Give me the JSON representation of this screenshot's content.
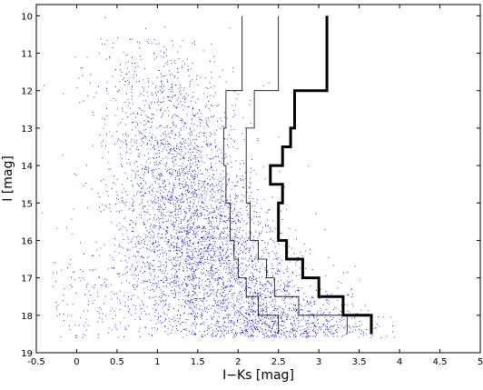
{
  "chart_data": {
    "type": "scatter",
    "xlabel": "I−Ks [mag]",
    "ylabel": "I [mag]",
    "xlim": [
      -0.5,
      5
    ],
    "ylim": [
      9.7,
      19
    ],
    "y_inverted": true,
    "grid": false,
    "x_ticks": [
      -0.5,
      0,
      0.5,
      1,
      1.5,
      2,
      2.5,
      3,
      3.5,
      4,
      4.5,
      5
    ],
    "x_tick_labels": [
      "-0.5",
      "0",
      "0.5",
      "1",
      "1.5",
      "2",
      "2.5",
      "3",
      "3.5",
      "4",
      "4.5",
      "5"
    ],
    "y_ticks": [
      10,
      11,
      12,
      13,
      14,
      15,
      16,
      17,
      18,
      19
    ],
    "y_tick_labels": [
      "10",
      "11",
      "12",
      "13",
      "14",
      "15",
      "16",
      "17",
      "18",
      "19"
    ],
    "scatter": {
      "color": "#0000ff",
      "approx_points": 9000,
      "description_of_locus": [
        {
          "I": 10.5,
          "color_center": 0.8,
          "color_spread": 0.4
        },
        {
          "I": 12,
          "color_center": 1.1,
          "color_spread": 0.45
        },
        {
          "I": 14,
          "color_center": 1.25,
          "color_spread": 0.45
        },
        {
          "I": 16,
          "color_center": 1.45,
          "color_spread": 0.5
        },
        {
          "I": 17,
          "color_center": 1.75,
          "color_spread": 0.6
        },
        {
          "I": 18,
          "color_center": 2.2,
          "color_spread": 0.65
        },
        {
          "I": 18.5,
          "color_center": 2.5,
          "color_spread": 0.6
        }
      ]
    },
    "series": [
      {
        "style": "thin",
        "color": "#000000",
        "steps": [
          {
            "I": [
              10.0,
              12.0
            ],
            "x": 2.05
          },
          {
            "I": [
              12.0,
              13.0
            ],
            "x": 1.85
          },
          {
            "I": [
              13.0,
              14.0
            ],
            "x": 1.82
          },
          {
            "I": [
              14.0,
              15.0
            ],
            "x": 1.85
          },
          {
            "I": [
              15.0,
              16.0
            ],
            "x": 1.9
          },
          {
            "I": [
              16.0,
              16.5
            ],
            "x": 1.95
          },
          {
            "I": [
              16.5,
              17.0
            ],
            "x": 2.0
          },
          {
            "I": [
              17.0,
              17.5
            ],
            "x": 2.1
          },
          {
            "I": [
              17.5,
              18.0
            ],
            "x": 2.25
          },
          {
            "I": [
              18.0,
              18.5
            ],
            "x": 2.5
          }
        ]
      },
      {
        "style": "thin",
        "color": "#000000",
        "steps": [
          {
            "I": [
              10.0,
              12.0
            ],
            "x": 2.5
          },
          {
            "I": [
              12.0,
              13.0
            ],
            "x": 2.2
          },
          {
            "I": [
              13.0,
              14.0
            ],
            "x": 2.1
          },
          {
            "I": [
              14.0,
              15.0
            ],
            "x": 2.1
          },
          {
            "I": [
              15.0,
              16.0
            ],
            "x": 2.15
          },
          {
            "I": [
              16.0,
              16.5
            ],
            "x": 2.25
          },
          {
            "I": [
              16.5,
              17.0
            ],
            "x": 2.35
          },
          {
            "I": [
              17.0,
              17.5
            ],
            "x": 2.45
          },
          {
            "I": [
              17.5,
              18.0
            ],
            "x": 2.75
          },
          {
            "I": [
              18.0,
              18.5
            ],
            "x": 3.35
          }
        ]
      },
      {
        "style": "thick",
        "color": "#000000",
        "steps": [
          {
            "I": [
              10.0,
              12.0
            ],
            "x": 3.1
          },
          {
            "I": [
              12.0,
              13.0
            ],
            "x": 2.7
          },
          {
            "I": [
              13.0,
              13.5
            ],
            "x": 2.65
          },
          {
            "I": [
              13.5,
              14.0
            ],
            "x": 2.55
          },
          {
            "I": [
              14.0,
              14.5
            ],
            "x": 2.4
          },
          {
            "I": [
              14.5,
              15.0
            ],
            "x": 2.55
          },
          {
            "I": [
              15.0,
              16.0
            ],
            "x": 2.5
          },
          {
            "I": [
              16.0,
              16.5
            ],
            "x": 2.6
          },
          {
            "I": [
              16.5,
              17.0
            ],
            "x": 2.8
          },
          {
            "I": [
              17.0,
              17.5
            ],
            "x": 3.0
          },
          {
            "I": [
              17.5,
              18.0
            ],
            "x": 3.3
          },
          {
            "I": [
              18.0,
              18.5
            ],
            "x": 3.65
          }
        ]
      }
    ]
  }
}
